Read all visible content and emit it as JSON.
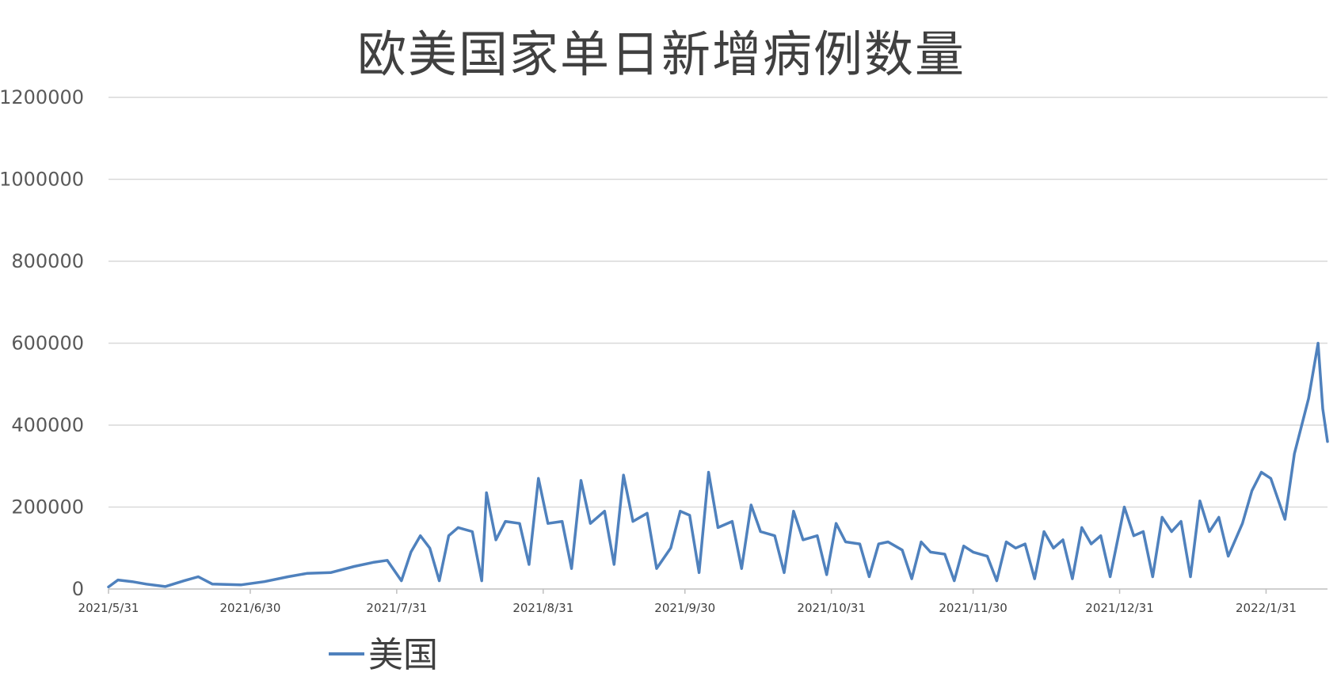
{
  "chart_data": {
    "type": "line",
    "title": "欧美国家单日新增病例数量",
    "xlabel": "",
    "ylabel": "",
    "ylim": [
      0,
      1200000
    ],
    "yticks": [
      "0",
      "200000",
      "400000",
      "600000",
      "800000",
      "1000000",
      "1200000"
    ],
    "xtick_labels": [
      "2021/5/31",
      "2021/6/30",
      "2021/7/31",
      "2021/8/31",
      "2021/9/30",
      "2021/10/31",
      "2021/11/30",
      "2021/12/31",
      "2022/1/31"
    ],
    "x_range": [
      "2021/5/31",
      "2022/2/13"
    ],
    "grid": "horizontal",
    "legend_position": "bottom",
    "series": [
      {
        "name": "美国",
        "color": "#4F81BD",
        "points": [
          [
            "2021/5/31",
            5000
          ],
          [
            "2021/6/2",
            22000
          ],
          [
            "2021/6/5",
            18000
          ],
          [
            "2021/6/8",
            12000
          ],
          [
            "2021/6/12",
            6000
          ],
          [
            "2021/6/16",
            20000
          ],
          [
            "2021/6/19",
            30000
          ],
          [
            "2021/6/22",
            12000
          ],
          [
            "2021/6/28",
            10000
          ],
          [
            "2021/7/3",
            18000
          ],
          [
            "2021/7/8",
            30000
          ],
          [
            "2021/7/12",
            38000
          ],
          [
            "2021/7/17",
            40000
          ],
          [
            "2021/7/22",
            55000
          ],
          [
            "2021/7/26",
            65000
          ],
          [
            "2021/7/29",
            70000
          ],
          [
            "2021/8/1",
            20000
          ],
          [
            "2021/8/3",
            90000
          ],
          [
            "2021/8/5",
            130000
          ],
          [
            "2021/8/7",
            100000
          ],
          [
            "2021/8/9",
            20000
          ],
          [
            "2021/8/11",
            130000
          ],
          [
            "2021/8/13",
            150000
          ],
          [
            "2021/8/16",
            140000
          ],
          [
            "2021/8/18",
            20000
          ],
          [
            "2021/8/19",
            235000
          ],
          [
            "2021/8/21",
            120000
          ],
          [
            "2021/8/23",
            165000
          ],
          [
            "2021/8/26",
            160000
          ],
          [
            "2021/8/28",
            60000
          ],
          [
            "2021/8/30",
            270000
          ],
          [
            "2021/9/1",
            160000
          ],
          [
            "2021/9/4",
            165000
          ],
          [
            "2021/9/6",
            50000
          ],
          [
            "2021/9/8",
            265000
          ],
          [
            "2021/9/10",
            160000
          ],
          [
            "2021/9/13",
            190000
          ],
          [
            "2021/9/15",
            60000
          ],
          [
            "2021/9/17",
            278000
          ],
          [
            "2021/9/19",
            165000
          ],
          [
            "2021/9/22",
            185000
          ],
          [
            "2021/9/24",
            50000
          ],
          [
            "2021/9/27",
            100000
          ],
          [
            "2021/9/29",
            190000
          ],
          [
            "2021/10/1",
            180000
          ],
          [
            "2021/10/3",
            40000
          ],
          [
            "2021/10/5",
            285000
          ],
          [
            "2021/10/7",
            150000
          ],
          [
            "2021/10/10",
            165000
          ],
          [
            "2021/10/12",
            50000
          ],
          [
            "2021/10/14",
            205000
          ],
          [
            "2021/10/16",
            140000
          ],
          [
            "2021/10/19",
            130000
          ],
          [
            "2021/10/21",
            40000
          ],
          [
            "2021/10/23",
            190000
          ],
          [
            "2021/10/25",
            120000
          ],
          [
            "2021/10/28",
            130000
          ],
          [
            "2021/10/30",
            35000
          ],
          [
            "2021/11/1",
            160000
          ],
          [
            "2021/11/3",
            115000
          ],
          [
            "2021/11/6",
            110000
          ],
          [
            "2021/11/8",
            30000
          ],
          [
            "2021/11/10",
            110000
          ],
          [
            "2021/11/12",
            115000
          ],
          [
            "2021/11/15",
            95000
          ],
          [
            "2021/11/17",
            25000
          ],
          [
            "2021/11/19",
            115000
          ],
          [
            "2021/11/21",
            90000
          ],
          [
            "2021/11/24",
            85000
          ],
          [
            "2021/11/26",
            20000
          ],
          [
            "2021/11/28",
            105000
          ],
          [
            "2021/11/30",
            90000
          ],
          [
            "2021/12/3",
            80000
          ],
          [
            "2021/12/5",
            20000
          ],
          [
            "2021/12/7",
            115000
          ],
          [
            "2021/12/9",
            100000
          ],
          [
            "2021/12/11",
            110000
          ],
          [
            "2021/12/13",
            25000
          ],
          [
            "2021/12/15",
            140000
          ],
          [
            "2021/12/17",
            100000
          ],
          [
            "2021/12/19",
            120000
          ],
          [
            "2021/12/21",
            25000
          ],
          [
            "2021/12/23",
            150000
          ],
          [
            "2021/12/25",
            110000
          ],
          [
            "2021/12/27",
            130000
          ],
          [
            "2021/12/29",
            30000
          ],
          [
            "2022/1/1",
            200000
          ],
          [
            "2022/1/3",
            130000
          ],
          [
            "2022/1/5",
            140000
          ],
          [
            "2022/1/7",
            30000
          ],
          [
            "2022/1/9",
            175000
          ],
          [
            "2022/1/11",
            140000
          ],
          [
            "2022/1/13",
            165000
          ],
          [
            "2022/1/15",
            30000
          ],
          [
            "2022/1/17",
            215000
          ],
          [
            "2022/1/19",
            140000
          ],
          [
            "2022/1/21",
            175000
          ],
          [
            "2022/1/23",
            80000
          ],
          [
            "2022/1/26",
            160000
          ],
          [
            "2022/1/28",
            240000
          ],
          [
            "2022/1/30",
            285000
          ],
          [
            "2022/2/1",
            270000
          ],
          [
            "2022/2/4",
            170000
          ],
          [
            "2022/2/6",
            330000
          ],
          [
            "2022/2/9",
            465000
          ],
          [
            "2022/2/11",
            600000
          ],
          [
            "2022/2/12",
            440000
          ],
          [
            "2022/2/13",
            360000
          ]
        ]
      }
    ]
  }
}
